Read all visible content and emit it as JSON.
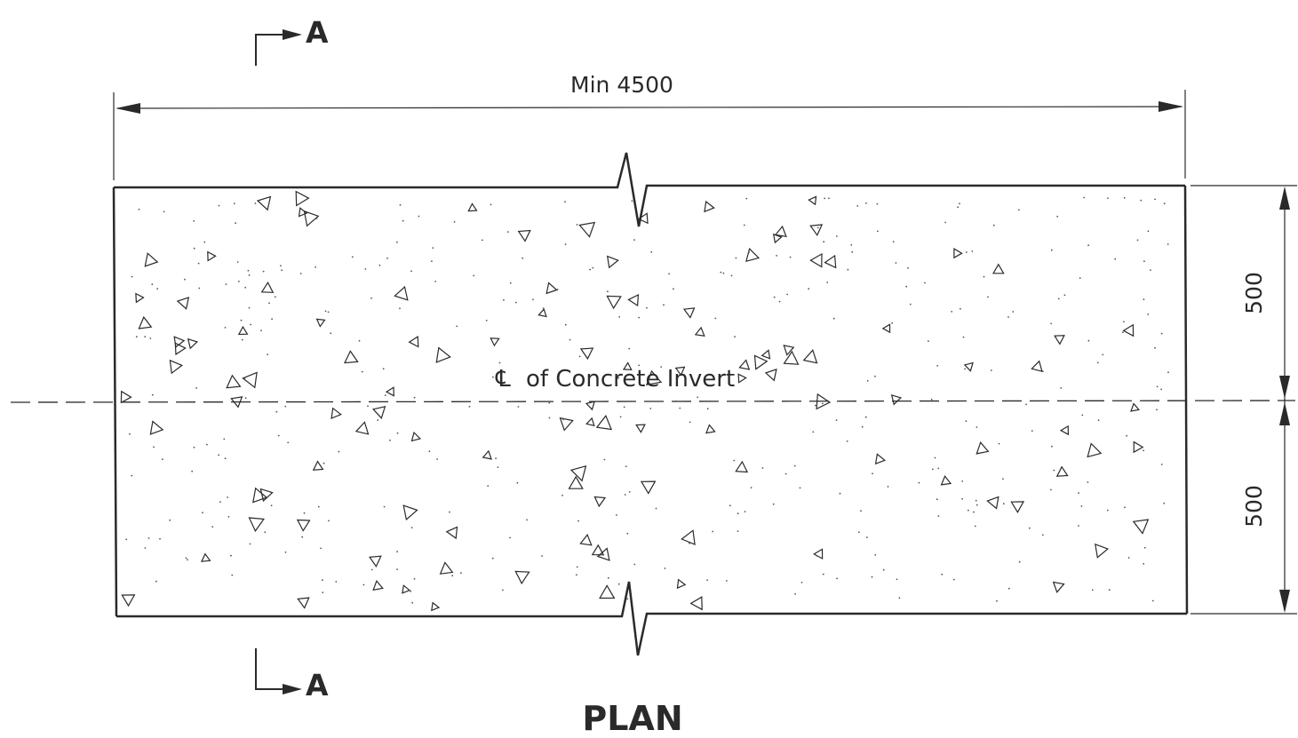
{
  "drawing": {
    "title": "PLAN",
    "section_marker_letter": "A",
    "centerline_label": "of Concrete Invert",
    "centerline_symbol": "℄",
    "dimensions": {
      "overall_length": "Min 4500",
      "upper_half_width": "500",
      "lower_half_width": "500"
    },
    "colors": {
      "line": "#2a2a2a",
      "background": "#ffffff"
    },
    "hatch_pattern": "concrete-aggregate-triangles"
  }
}
